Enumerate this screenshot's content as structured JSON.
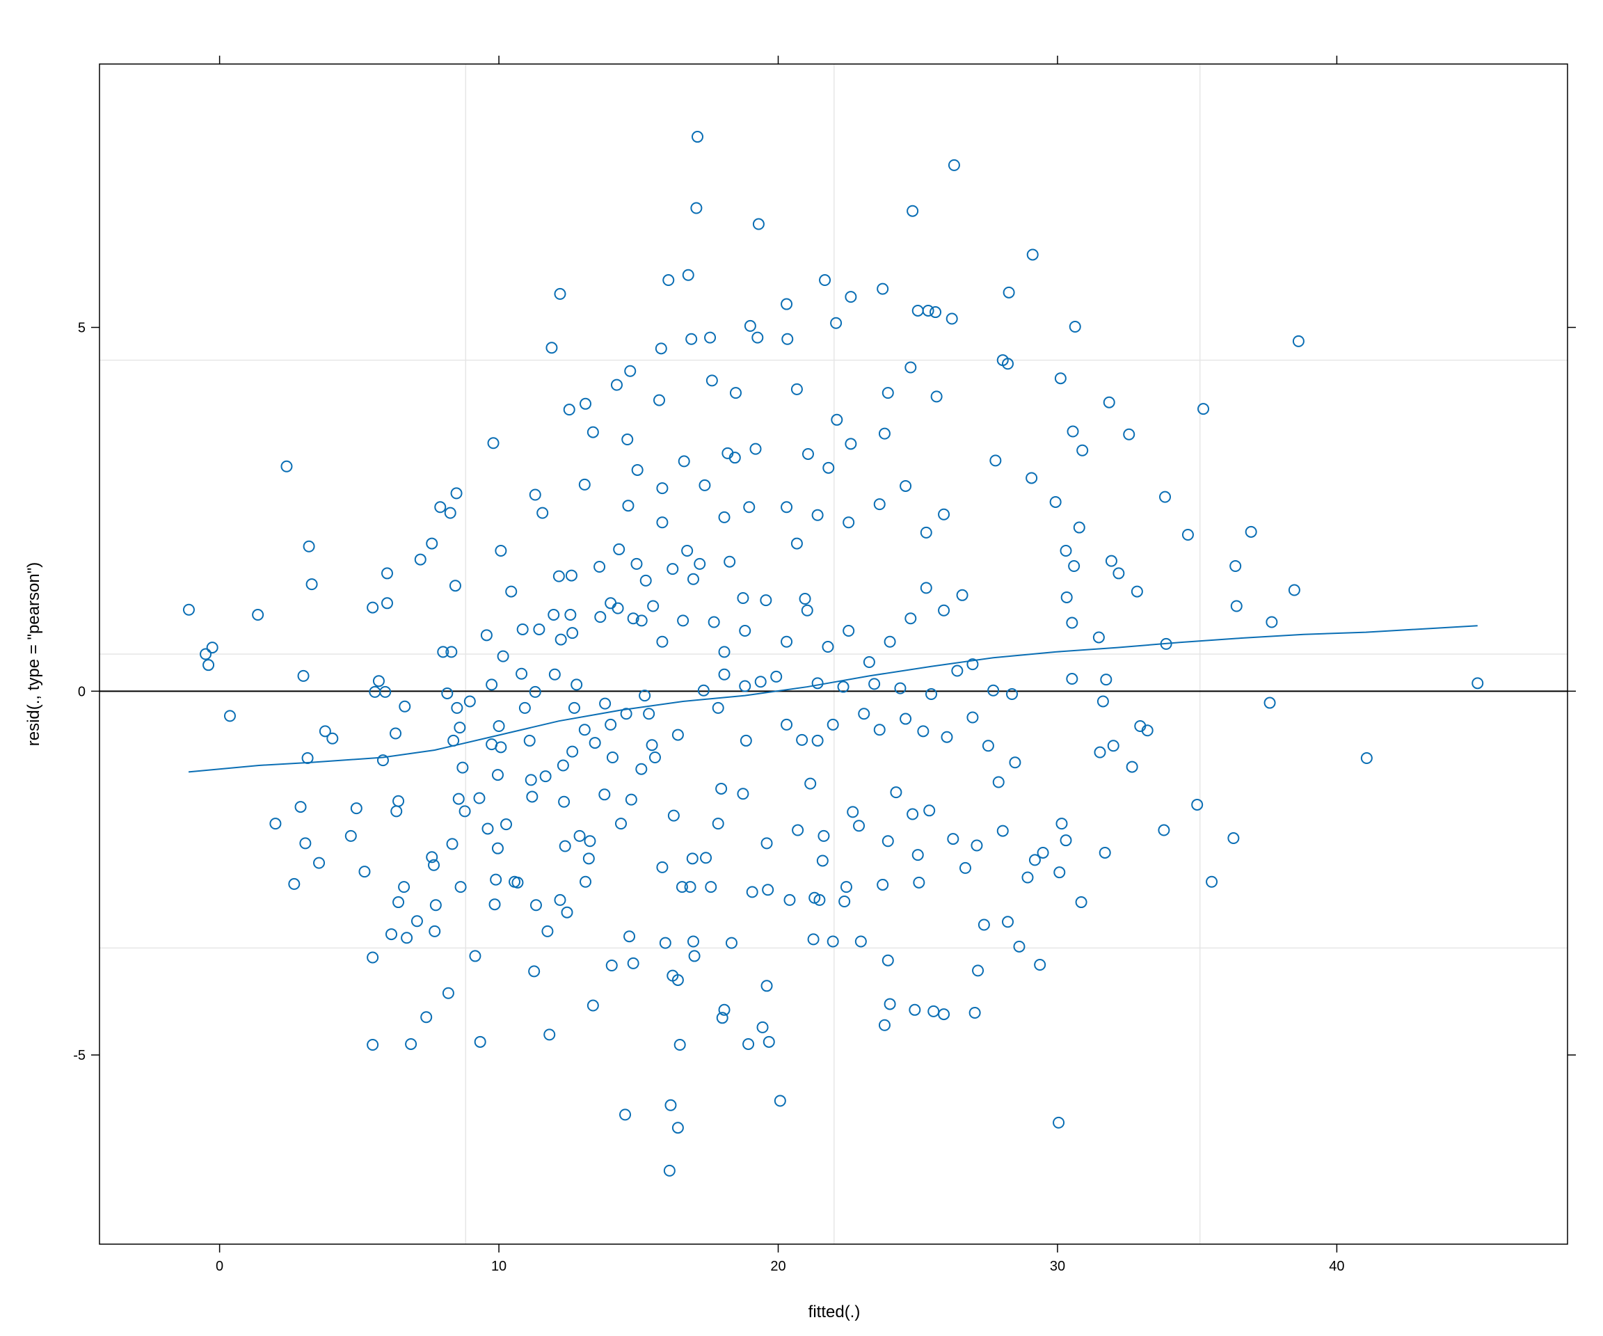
{
  "chart_data": {
    "type": "scatter",
    "xlabel": "fitted(.)",
    "ylabel": "resid(., type = \"pearson\")",
    "color": "#0a6eb4",
    "xlim": [
      -4.3,
      48.26
    ],
    "ylim": [
      -7.6,
      8.62
    ],
    "xticks": [
      0,
      10,
      20,
      30,
      40
    ],
    "yticks": [
      -5,
      0,
      5
    ],
    "xgrid": [
      8.81,
      22.0,
      35.1
    ],
    "ygrid": [
      -3.53,
      0.51,
      4.55
    ],
    "hline": 0,
    "x": [
      -1.1,
      -0.5,
      -0.26,
      -0.4,
      0.37,
      1.37,
      2.4,
      3.2,
      3.3,
      3.0,
      3.15,
      2.9,
      2.0,
      2.67,
      3.07,
      3.56,
      3.78,
      4.04,
      4.9,
      4.7,
      5.19,
      5.48,
      5.48,
      5.48,
      6.0,
      6.0,
      5.7,
      5.56,
      5.93,
      5.85,
      6.3,
      6.4,
      6.33,
      6.63,
      6.6,
      6.4,
      6.15,
      6.7,
      6.85,
      7.07,
      7.19,
      7.4,
      7.6,
      7.6,
      7.7,
      7.67,
      7.74,
      7.9,
      8.26,
      8.48,
      8.0,
      8.3,
      8.15,
      8.44,
      8.19,
      8.33,
      8.37,
      8.5,
      8.6,
      8.56,
      8.78,
      8.63,
      8.7,
      8.96,
      9.15,
      9.33,
      9.3,
      9.56,
      9.6,
      9.74,
      9.8,
      9.74,
      10.0,
      9.85,
      9.89,
      9.96,
      9.96,
      10.07,
      10.15,
      10.07,
      10.26,
      10.44,
      10.56,
      10.67,
      10.81,
      10.93,
      10.85,
      11.1,
      11.15,
      11.19,
      11.26,
      11.33,
      11.3,
      11.3,
      11.44,
      11.56,
      11.67,
      11.74,
      11.81,
      11.89,
      11.96,
      12.0,
      12.15,
      12.19,
      12.22,
      12.3,
      12.19,
      12.33,
      12.37,
      12.44,
      12.52,
      12.56,
      12.6,
      12.63,
      12.63,
      12.7,
      12.78,
      12.89,
      13.07,
      13.1,
      13.07,
      13.1,
      13.22,
      13.26,
      13.37,
      13.37,
      13.44,
      13.6,
      13.63,
      13.78,
      13.8,
      14.0,
      14.07,
      14.04,
      14.22,
      14.26,
      14.3,
      14.37,
      14.52,
      14.6,
      14.63,
      14.67,
      14.7,
      14.74,
      14.81,
      14.81,
      14.96,
      15.1,
      15.26,
      15.22,
      15.37,
      15.52,
      15.59,
      15.74,
      15.85,
      15.81,
      15.96,
      16.07,
      16.11,
      16.15,
      16.22,
      16.26,
      16.41,
      16.41,
      16.48,
      16.56,
      16.63,
      16.74,
      16.78,
      16.89,
      16.96,
      17.0,
      17.11,
      17.07,
      17.19,
      17.37,
      17.56,
      17.63,
      17.7,
      17.85,
      17.96,
      18.0,
      18.07,
      18.19,
      18.26,
      18.33,
      18.45,
      18.48,
      18.74,
      18.85,
      18.93,
      18.96,
      19.0,
      19.19,
      19.26,
      19.3,
      19.44,
      19.59,
      19.67,
      20.07,
      20.3,
      20.33,
      20.67,
      20.96,
      21.07,
      21.26,
      21.63,
      21.67,
      21.8,
      22.07,
      22.1,
      22.6,
      22.6,
      22.96,
      23.74,
      23.81,
      24.0,
      23.81,
      23.93,
      23.93,
      24.74,
      24.81,
      24.89,
      25.0,
      25.37,
      25.63,
      25.67,
      25.56,
      25.93,
      26.22,
      26.3,
      27.04,
      27.15,
      27.37,
      27.78,
      28.04,
      28.22,
      28.26,
      28.22,
      28.63,
      29.11,
      29.07,
      29.37,
      29.93,
      30.04,
      30.11,
      30.55,
      30.63,
      30.85,
      30.89,
      30.78,
      31.7,
      31.85,
      31.93,
      32.19,
      32.56,
      32.67,
      32.85,
      32.96,
      33.22,
      33.81,
      33.85,
      33.89,
      34.67,
      35.0,
      35.22,
      35.52,
      36.3,
      36.37,
      36.41,
      36.93,
      37.6,
      37.67,
      38.48,
      38.63,
      41.07,
      45.04,
      31.52,
      31.63,
      32.0,
      31.74,
      31.48,
      30.52,
      30.33,
      30.59,
      30.52,
      30.3,
      30.15,
      30.3,
      30.07,
      29.48,
      29.19,
      28.93,
      28.04,
      27.89,
      28.48,
      28.37,
      27.7,
      27.52,
      27.11,
      26.7,
      26.26,
      25.41,
      25.04,
      25.0,
      24.81,
      24.22,
      23.93,
      23.74,
      22.89,
      22.67,
      22.37,
      22.44,
      21.96,
      21.48,
      21.59,
      21.3,
      21.15,
      20.7,
      20.41,
      19.63,
      19.07,
      19.59,
      18.74,
      17.85,
      17.59,
      16.85,
      16.93,
      17.41,
      15.85,
      18.81,
      19.37,
      19.93,
      21.41,
      22.33,
      23.44,
      24.37,
      25.48,
      26.41,
      26.96,
      18.07,
      17.33,
      16.41,
      15.48,
      14.56,
      14.0,
      20.3,
      20.85,
      21.41,
      21.96,
      23.07,
      23.63,
      24.56,
      25.19,
      26.04,
      26.96,
      20.3,
      21.04,
      21.78,
      22.52,
      23.26,
      24.0,
      24.74,
      25.3,
      25.93,
      26.59,
      19.56,
      18.81,
      18.07,
      16.59,
      15.85,
      15.11,
      16.96,
      16.22,
      20.67,
      21.41,
      22.52,
      23.63,
      24.56,
      25.3,
      25.93,
      20.3,
      18.07,
      15.85,
      14.93
    ],
    "values": [
      1.12,
      0.51,
      0.6,
      0.36,
      -0.34,
      1.05,
      3.09,
      1.99,
      1.47,
      0.21,
      -0.92,
      -1.59,
      -1.82,
      -2.65,
      -2.09,
      -2.36,
      -0.55,
      -0.65,
      -1.61,
      -1.99,
      -2.48,
      -3.66,
      -4.86,
      1.15,
      1.21,
      1.62,
      0.14,
      -0.01,
      -0.01,
      -0.95,
      -0.58,
      -1.51,
      -1.65,
      -0.21,
      -2.69,
      -2.9,
      -3.34,
      -3.39,
      -4.85,
      -3.16,
      1.81,
      -4.48,
      2.03,
      -2.28,
      -3.3,
      -2.39,
      -2.94,
      2.53,
      2.45,
      2.72,
      0.54,
      0.54,
      -0.03,
      1.45,
      -4.15,
      -2.1,
      -0.68,
      -0.23,
      -0.5,
      -1.48,
      -1.65,
      -2.69,
      -1.05,
      -0.14,
      -3.64,
      -4.82,
      -1.47,
      0.77,
      -1.89,
      0.09,
      3.41,
      -0.73,
      -0.48,
      -2.93,
      -2.59,
      -2.16,
      -1.15,
      1.93,
      0.48,
      -0.77,
      -1.83,
      1.37,
      -2.62,
      -2.63,
      0.24,
      -0.23,
      0.85,
      -0.68,
      -1.22,
      -1.45,
      -3.85,
      -2.94,
      -0.01,
      2.7,
      0.85,
      2.45,
      -1.17,
      -3.3,
      -4.72,
      4.72,
      1.05,
      0.23,
      1.58,
      5.46,
      0.71,
      -1.02,
      -2.87,
      -1.52,
      -2.13,
      -3.04,
      3.87,
      1.05,
      1.59,
      -0.83,
      0.8,
      -0.23,
      0.09,
      -1.99,
      2.84,
      3.95,
      -0.53,
      -2.62,
      -2.3,
      -2.06,
      3.56,
      -4.32,
      -0.71,
      1.71,
      1.02,
      -1.42,
      -0.17,
      1.21,
      -0.91,
      -3.77,
      4.21,
      1.14,
      1.95,
      -1.82,
      -5.82,
      3.46,
      2.55,
      -3.37,
      4.4,
      -1.49,
      -3.74,
      1.0,
      3.04,
      -1.07,
      1.52,
      -0.06,
      -0.31,
      1.17,
      -0.91,
      4.0,
      2.79,
      4.71,
      -3.46,
      5.65,
      -6.59,
      -5.69,
      -3.91,
      -1.71,
      -3.97,
      -6.0,
      -4.86,
      -2.69,
      3.16,
      1.93,
      5.72,
      4.84,
      -3.44,
      -3.64,
      7.62,
      6.64,
      1.75,
      2.83,
      4.86,
      4.27,
      0.95,
      -0.23,
      -1.34,
      -4.49,
      -4.38,
      3.27,
      1.78,
      -3.46,
      3.21,
      4.1,
      1.28,
      -0.68,
      -4.85,
      2.53,
      5.02,
      3.33,
      4.86,
      6.42,
      -4.62,
      -4.05,
      -4.82,
      -5.63,
      5.32,
      4.84,
      4.15,
      1.27,
      3.26,
      -3.41,
      -1.99,
      5.65,
      3.07,
      5.06,
      3.73,
      5.42,
      3.4,
      -3.44,
      5.53,
      -4.59,
      -4.3,
      3.54,
      4.1,
      -3.7,
      4.45,
      6.6,
      -4.38,
      5.23,
      5.23,
      5.21,
      4.05,
      -4.4,
      -4.44,
      5.12,
      7.23,
      -4.42,
      -3.84,
      -3.21,
      3.17,
      4.55,
      4.5,
      5.48,
      -3.17,
      -3.51,
      6.0,
      2.93,
      -3.76,
      2.6,
      -5.93,
      4.3,
      3.57,
      5.01,
      -2.9,
      3.31,
      2.25,
      -2.22,
      3.97,
      1.79,
      1.62,
      3.53,
      -1.04,
      1.37,
      -0.48,
      -0.54,
      -1.91,
      2.67,
      0.65,
      2.15,
      -1.56,
      3.88,
      -2.62,
      -2.02,
      1.72,
      1.17,
      2.19,
      -0.16,
      0.95,
      1.39,
      4.81,
      -0.92,
      0.11,
      -0.84,
      -0.14,
      -0.75,
      0.16,
      0.74,
      0.94,
      1.29,
      1.72,
      0.17,
      1.93,
      -1.82,
      -2.05,
      -2.49,
      -2.22,
      -2.32,
      -2.56,
      -1.92,
      -1.25,
      -0.98,
      -0.04,
      0.01,
      -0.75,
      -2.12,
      -2.43,
      -2.03,
      -1.64,
      -2.63,
      -2.25,
      -1.69,
      -1.39,
      -2.06,
      -2.66,
      -1.85,
      -1.66,
      -2.89,
      -2.69,
      -3.44,
      -2.87,
      -2.33,
      -2.84,
      -1.27,
      -1.91,
      -2.87,
      -2.73,
      -2.76,
      -2.09,
      -1.41,
      -1.82,
      -2.69,
      -2.69,
      -2.3,
      -2.29,
      -2.42,
      0.07,
      0.13,
      0.2,
      0.11,
      0.06,
      0.1,
      0.04,
      -0.04,
      0.28,
      0.37,
      0.23,
      0.01,
      -0.6,
      -0.74,
      -0.31,
      -0.46,
      -0.46,
      -0.67,
      -0.68,
      -0.46,
      -0.31,
      -0.53,
      -0.38,
      -0.55,
      -0.63,
      -0.36,
      0.68,
      1.11,
      0.61,
      0.83,
      0.4,
      0.68,
      1.0,
      1.42,
      1.11,
      1.32,
      1.25,
      0.83,
      0.54,
      0.97,
      0.68,
      0.97,
      1.54,
      1.68,
      2.03,
      2.42,
      2.32,
      2.57,
      2.82,
      2.18,
      2.43,
      2.53,
      2.39,
      2.32,
      1.75
    ],
    "smooth": {
      "x": [
        -1.11,
        1.41,
        3.26,
        5.85,
        7.7,
        9.93,
        12.15,
        14.37,
        16.59,
        18.81,
        21.04,
        23.26,
        25.48,
        27.7,
        29.93,
        32.15,
        34.37,
        36.59,
        38.81,
        41.04,
        45.04
      ],
      "values": [
        -1.11,
        -1.02,
        -0.98,
        -0.91,
        -0.81,
        -0.61,
        -0.41,
        -0.26,
        -0.14,
        -0.06,
        0.06,
        0.21,
        0.34,
        0.46,
        0.54,
        0.6,
        0.67,
        0.73,
        0.78,
        0.81,
        0.9
      ]
    }
  }
}
